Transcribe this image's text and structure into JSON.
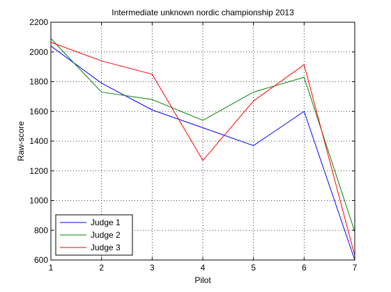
{
  "chart_data": {
    "type": "line",
    "title": "Intermediate unknown nordic championship 2013",
    "xlabel": "Pilot",
    "ylabel": "Raw-score",
    "x": [
      1,
      2,
      3,
      4,
      5,
      6,
      7
    ],
    "xlim": [
      1,
      7
    ],
    "ylim": [
      600,
      2200
    ],
    "xticks": [
      1,
      2,
      3,
      4,
      5,
      6,
      7
    ],
    "yticks": [
      600,
      800,
      1000,
      1200,
      1400,
      1600,
      1800,
      2000,
      2200
    ],
    "grid": true,
    "legend_position": "bottom-left",
    "series": [
      {
        "name": "Judge 1",
        "color": "#0000ff",
        "values": [
          2040,
          1790,
          1610,
          1490,
          1370,
          1600,
          600
        ]
      },
      {
        "name": "Judge 2",
        "color": "#008000",
        "values": [
          2090,
          1730,
          1680,
          1540,
          1730,
          1830,
          790
        ]
      },
      {
        "name": "Judge 3",
        "color": "#ff0000",
        "values": [
          2065,
          1940,
          1850,
          1270,
          1670,
          1915,
          630
        ]
      }
    ]
  }
}
